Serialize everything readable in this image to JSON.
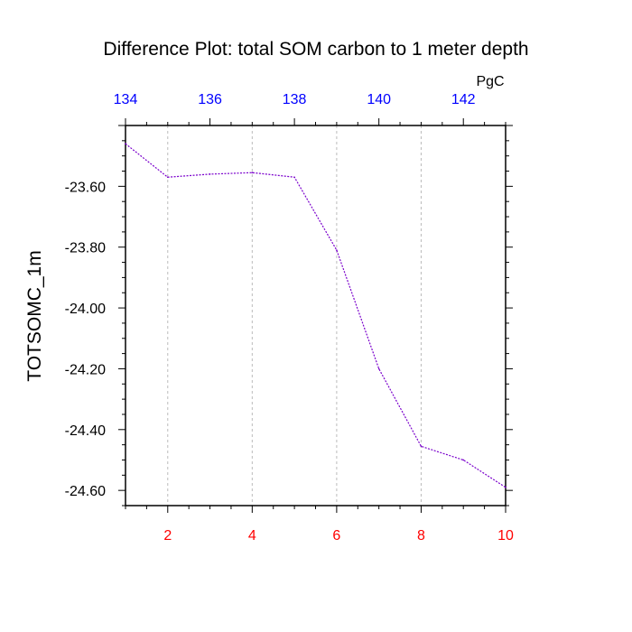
{
  "chart_data": {
    "type": "line",
    "title": "Difference Plot: total SOM carbon to 1 meter depth",
    "ylabel": "TOTSOMC_1m",
    "top_axis_unit": "PgC",
    "x": [
      1,
      2,
      3,
      4,
      5,
      6,
      7,
      8,
      9,
      10
    ],
    "series": [
      {
        "values": [
          -23.46,
          -23.57,
          -23.56,
          -23.555,
          -23.57,
          -23.81,
          -24.2,
          -24.455,
          -24.5,
          -24.59
        ]
      }
    ],
    "xlim": [
      1,
      10
    ],
    "ylim": [
      -24.65,
      -23.4
    ],
    "bottom_ticks": [
      "2",
      "4",
      "6",
      "8",
      "10"
    ],
    "top_ticks": [
      "134",
      "136",
      "138",
      "140",
      "142"
    ],
    "y_ticks": [
      "-23.60",
      "-23.80",
      "-24.00",
      "-24.20",
      "-24.40",
      "-24.60"
    ],
    "grid": "vertical dashed at bottom axis major ticks",
    "colors": {
      "line": "#7a00cc",
      "bottom_tick_labels": "#ff0000",
      "top_tick_labels": "#0000ff",
      "text": "#000000",
      "grid": "#bbbbbb"
    }
  }
}
